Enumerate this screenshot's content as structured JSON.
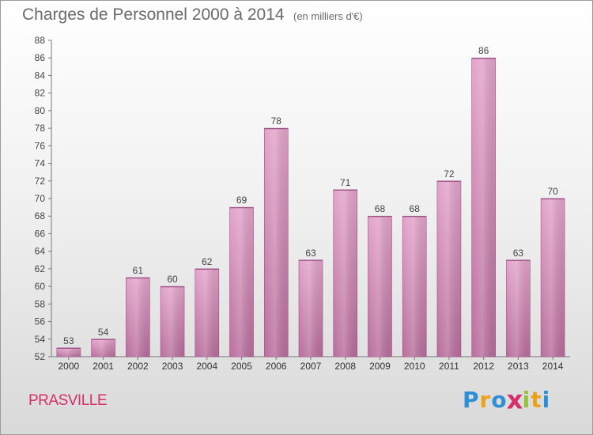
{
  "title": "Charges de Personnel 2000 à 2014",
  "subtitle": "(en milliers d'€)",
  "town": "PRASVILLE",
  "logo": {
    "letters": [
      "P",
      "r",
      "o",
      "x",
      "i",
      "t",
      "i"
    ],
    "colors": [
      "#2f8fd4",
      "#e9a21c",
      "#2f8fd4",
      "#d4306a",
      "#8fc43a",
      "#e9a21c",
      "#2f8fd4"
    ]
  },
  "colors": {
    "bar_fill_top": "#e3a4ca",
    "bar_fill_bottom": "#b86e9c",
    "bar_edge": "#a0508a",
    "title": "#6a6a6a",
    "town": "#d4306a"
  },
  "chart_data": {
    "type": "bar",
    "title": "Charges de Personnel 2000 à 2014",
    "subtitle": "(en milliers d'€)",
    "categories": [
      "2000",
      "2001",
      "2002",
      "2003",
      "2004",
      "2005",
      "2006",
      "2007",
      "2008",
      "2009",
      "2010",
      "2011",
      "2012",
      "2013",
      "2014"
    ],
    "values": [
      53,
      54,
      61,
      60,
      62,
      69,
      78,
      63,
      71,
      68,
      68,
      72,
      86,
      63,
      70
    ],
    "ylim": [
      52,
      88
    ],
    "yticks": [
      52,
      54,
      56,
      58,
      60,
      62,
      64,
      66,
      68,
      70,
      72,
      74,
      76,
      78,
      80,
      82,
      84,
      86,
      88
    ],
    "xlabel": "",
    "ylabel": "",
    "grid": false,
    "legend": "none"
  }
}
